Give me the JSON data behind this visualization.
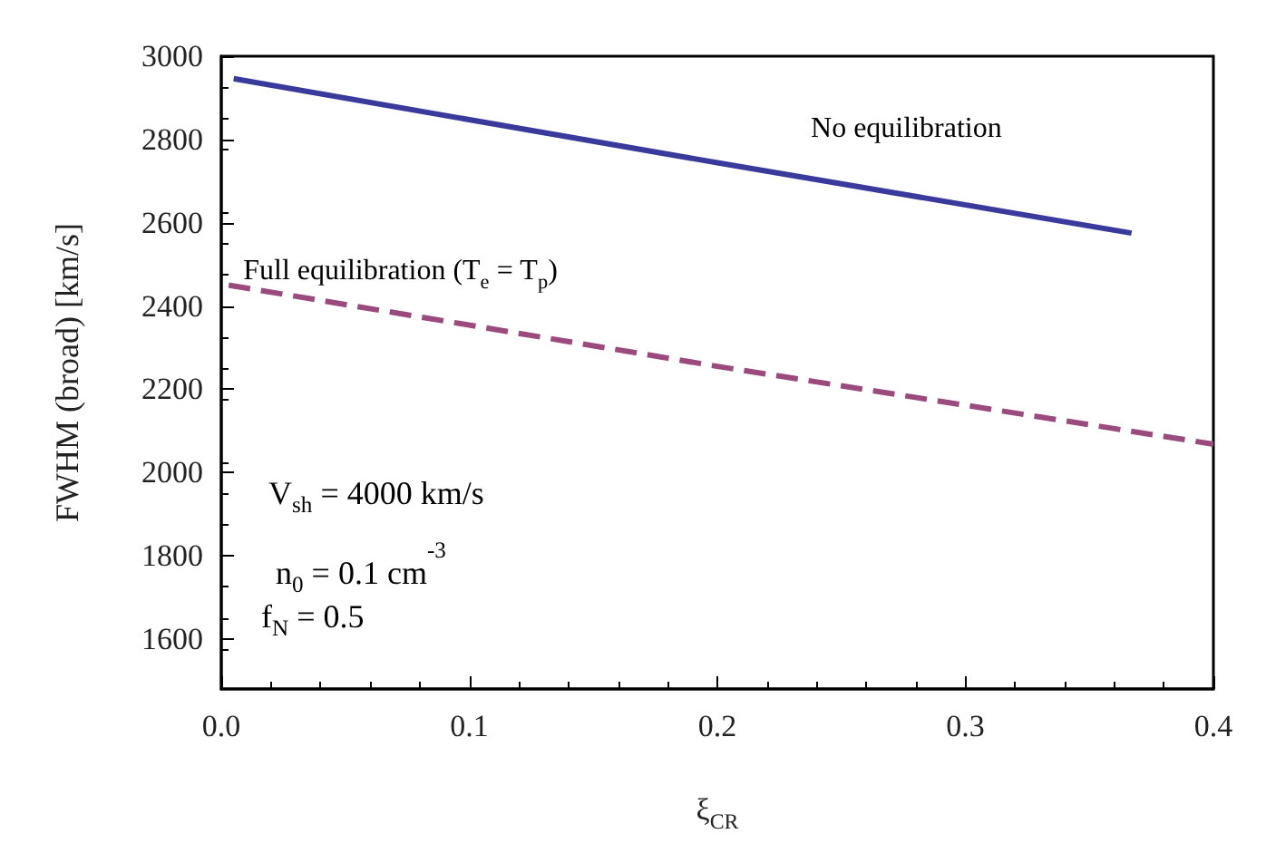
{
  "chart_data": {
    "type": "line",
    "xlabel": "ξ$_{CR}$",
    "ylabel": "FWHM (broad) [km/s]",
    "xlim": [
      0,
      0.4
    ],
    "xticks": [
      {
        "value": 0,
        "label": "0.0"
      },
      0.1,
      0.2,
      0.3,
      0.4
    ],
    "ylim": [
      1480,
      3000
    ],
    "yticks": [
      1600,
      1800,
      2000,
      2200,
      2400,
      2600,
      2800,
      3000
    ],
    "grid": false,
    "legend": false,
    "series": [
      {
        "name": "No equilibration",
        "color": "#3a3a9c",
        "line_style": "solid",
        "x": [
          0.005,
          0.2,
          0.367
        ],
        "values": [
          2946,
          2744,
          2575
        ]
      },
      {
        "name": "Full equilibration (T$_{e}$ = T$_{p}$)",
        "color": "#9b4a7e",
        "line_style": "dashed",
        "x": [
          0.003,
          0.2,
          0.4
        ],
        "values": [
          2450,
          2255,
          2068
        ]
      }
    ],
    "annotations": [
      "V$_{sh}$ = 4000 km/s",
      "n$_{0}$ = 0.1 cm$^{-3}$",
      "f$_{N}$ = 0.5"
    ]
  }
}
